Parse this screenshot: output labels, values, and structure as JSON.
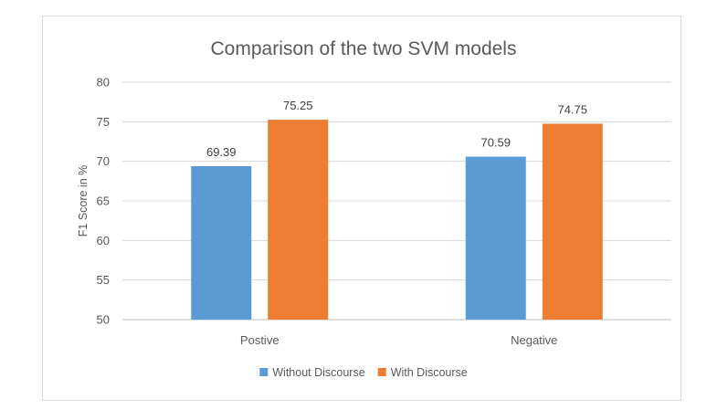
{
  "chart_data": {
    "type": "bar",
    "title": "Comparison of the two SVM models",
    "xlabel": "",
    "ylabel": "F1 Score in %",
    "categories": [
      "Postive",
      "Negative"
    ],
    "series": [
      {
        "name": "Without Discourse",
        "values": [
          69.39,
          70.59
        ],
        "color": "#5b9bd5"
      },
      {
        "name": "With Discourse",
        "values": [
          75.25,
          74.75
        ],
        "color": "#ed7d31"
      }
    ],
    "data_labels": [
      [
        "69.39",
        "70.59"
      ],
      [
        "75.25",
        "74.75"
      ]
    ],
    "ylim": [
      50,
      80
    ],
    "ytick_step": 5,
    "grid": true,
    "legend_position": "bottom"
  }
}
